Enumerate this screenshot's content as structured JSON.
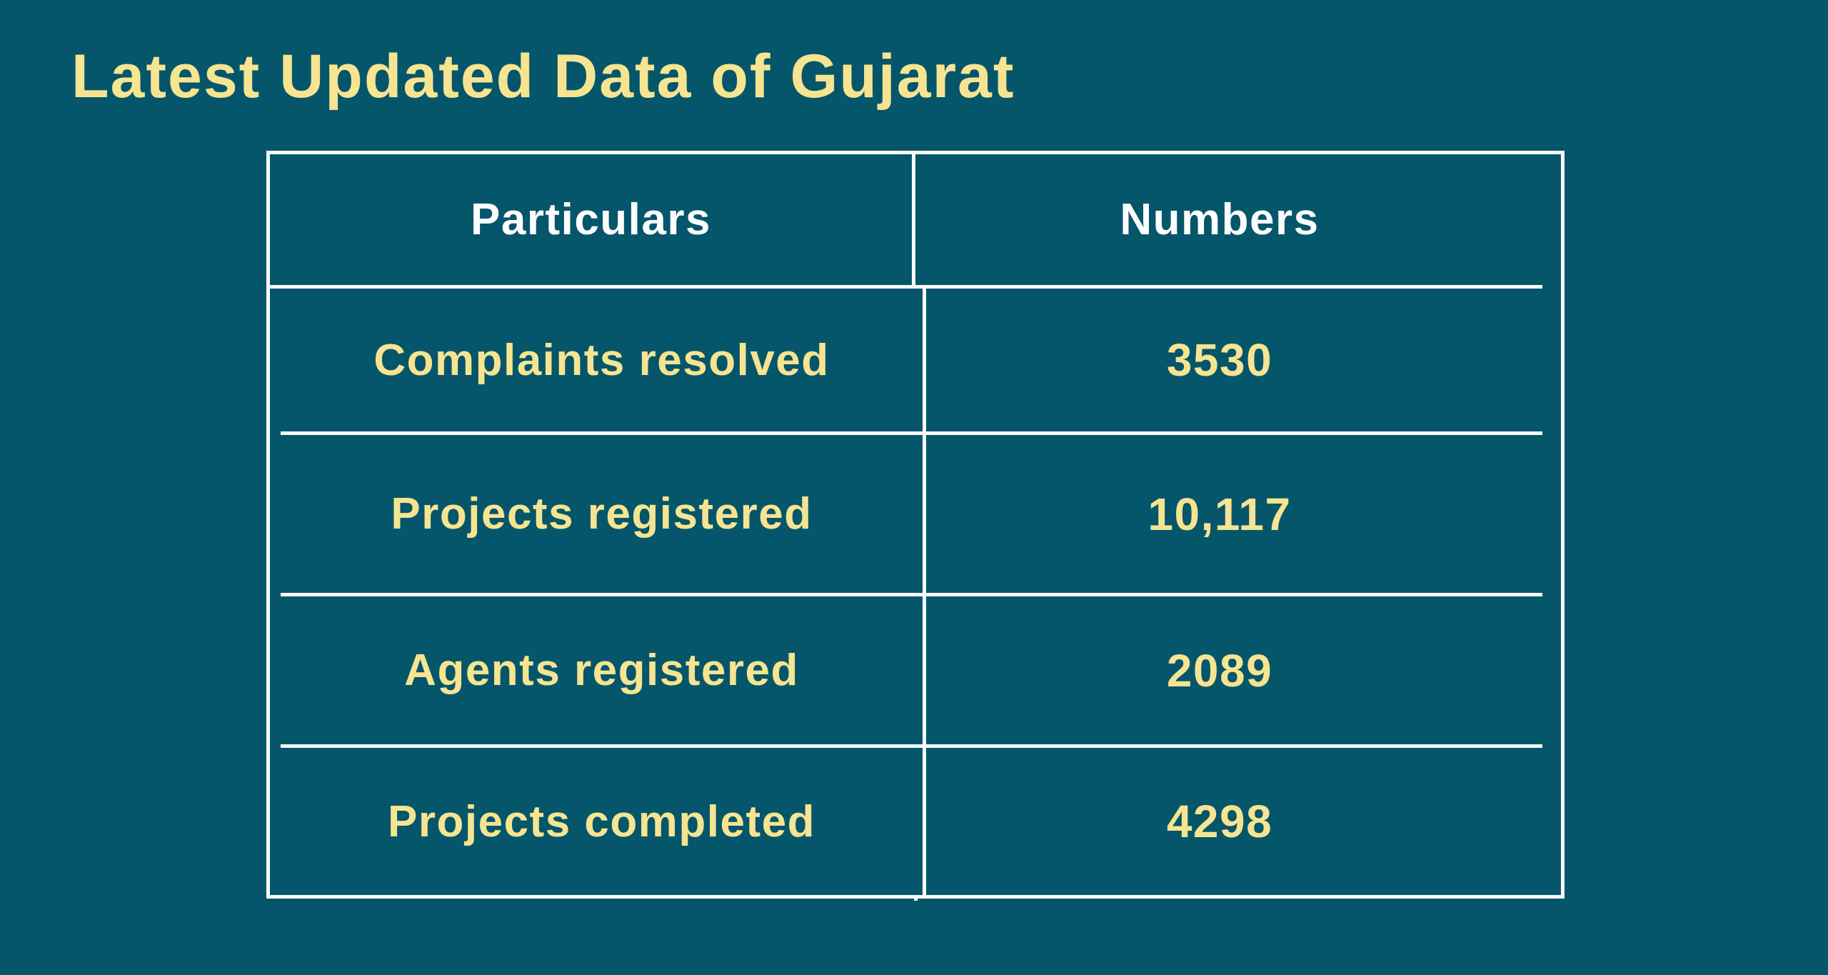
{
  "page": {
    "title": "Latest Updated Data of Gujarat",
    "background_color": "#05566b",
    "title_color": "#f6e491",
    "header_text_color": "#fdfdfd",
    "cell_text_color": "#f6e491",
    "table_border_color": "#f8fbfb"
  },
  "chart_data": {
    "type": "table",
    "title": "Latest Updated Data of Gujarat",
    "columns": [
      "Particulars",
      "Numbers"
    ],
    "rows": [
      {
        "particular": "Complaints resolved",
        "number": "3530"
      },
      {
        "particular": "Projects registered",
        "number": "10,117"
      },
      {
        "particular": "Agents registered",
        "number": "2089"
      },
      {
        "particular": "Projects completed",
        "number": "4298"
      }
    ],
    "numeric_values": {
      "Complaints resolved": 3530,
      "Projects registered": 10117,
      "Agents registered": 2089,
      "Projects completed": 4298
    },
    "layout": {
      "grid": true,
      "legend": false,
      "header_row": true
    }
  }
}
